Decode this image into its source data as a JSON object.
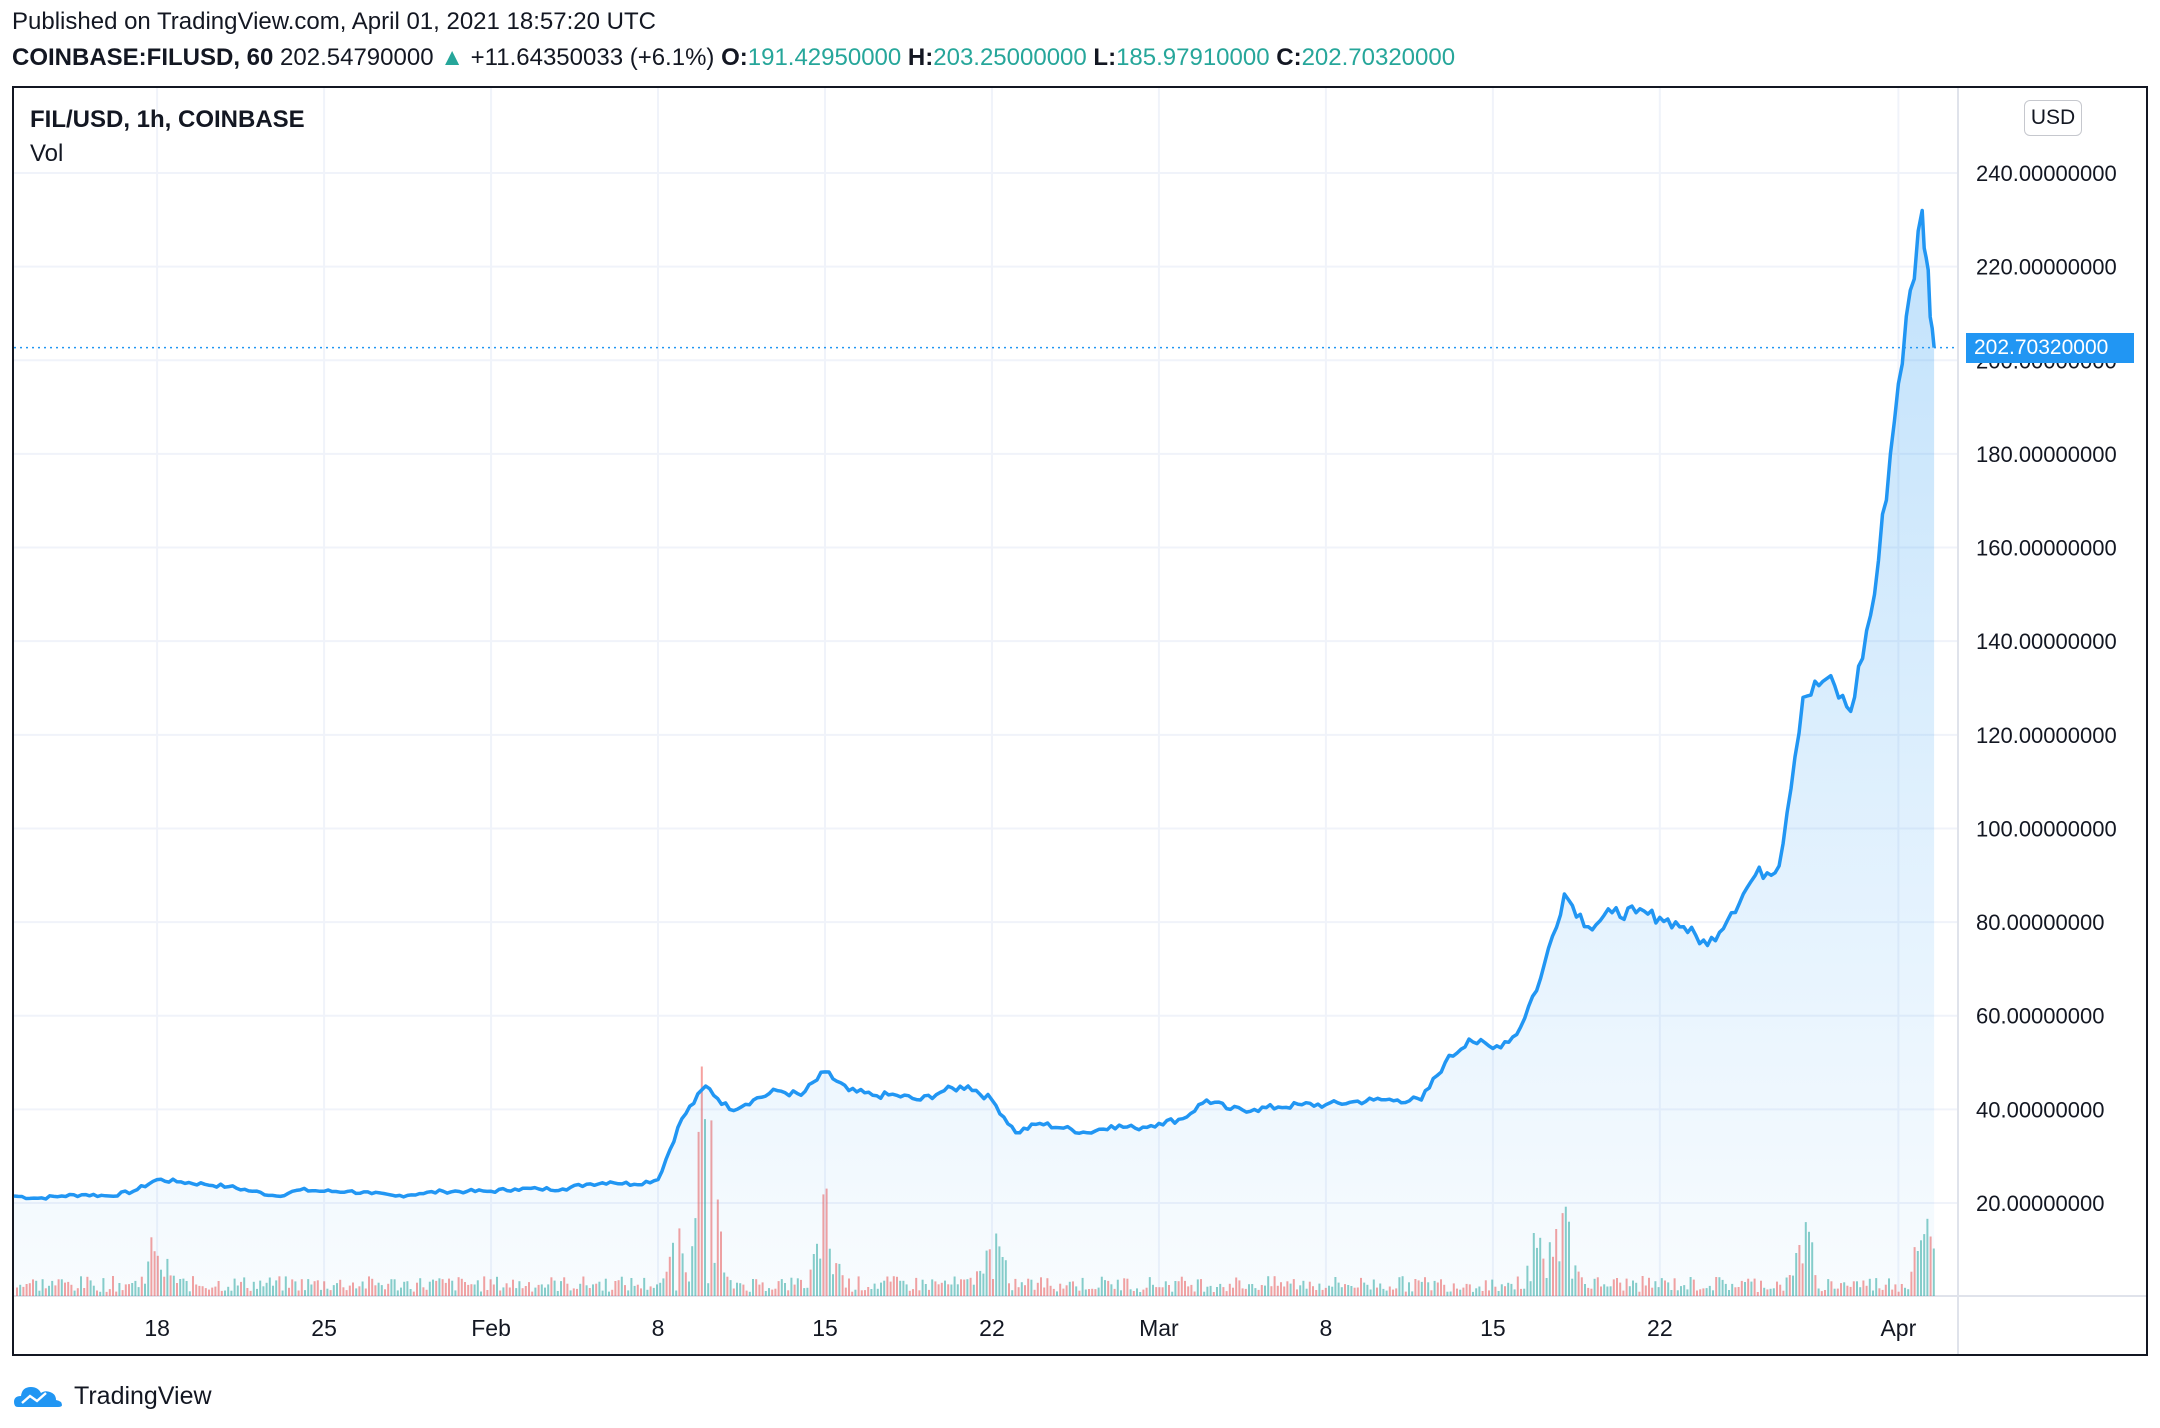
{
  "header": {
    "published": "Published on TradingView.com, April 01, 2021 18:57:20 UTC",
    "symbol": "COINBASE:FILUSD, 60",
    "price": "202.54790000",
    "change": "+11.64350033 (+6.1%)",
    "open_label": "O:",
    "open": "191.42950000",
    "high_label": "H:",
    "high": "203.25000000",
    "low_label": "L:",
    "low": "185.97910000",
    "close_label": "C:",
    "close": "202.70320000"
  },
  "legend": {
    "main": "FIL/USD, 1h, COINBASE",
    "volume": "Vol"
  },
  "currency_button": "USD",
  "last_price_label": "202.70320000",
  "footer": {
    "brand": "TradingView"
  },
  "colors": {
    "line": "#2196f3",
    "vol_up": "#26a69a",
    "vol_down": "#ef5350",
    "grid": "#f0f3fa",
    "text": "#131722"
  },
  "chart_data": {
    "type": "area",
    "title": "FIL/USD, 1h, COINBASE",
    "xlabel": "",
    "ylabel": "",
    "x_unit": "date",
    "ylim": [
      0,
      250
    ],
    "y_ticks": [
      20,
      40,
      60,
      80,
      100,
      120,
      140,
      160,
      180,
      200,
      220,
      240
    ],
    "y_tick_labels": [
      "20.00000000",
      "40.00000000",
      "60.00000000",
      "80.00000000",
      "100.00000000",
      "120.00000000",
      "140.00000000",
      "160.00000000",
      "180.00000000",
      "200.00000000",
      "220.00000000",
      "240.00000000"
    ],
    "x_ticks": [
      "2021-01-18",
      "2021-01-25",
      "2021-02-01",
      "2021-02-08",
      "2021-02-15",
      "2021-02-22",
      "2021-03-01",
      "2021-03-08",
      "2021-03-15",
      "2021-03-22",
      "2021-04-01"
    ],
    "x_tick_labels": [
      "18",
      "25",
      "Feb",
      "8",
      "15",
      "22",
      "Mar",
      "8",
      "15",
      "22",
      "Apr"
    ],
    "grid": true,
    "last_price": 202.7032,
    "series": [
      {
        "points": [
          [
            "2021-01-12",
            21.5
          ],
          [
            "2021-01-13",
            21.0
          ],
          [
            "2021-01-14",
            21.5
          ],
          [
            "2021-01-15",
            21.8
          ],
          [
            "2021-01-16",
            21.5
          ],
          [
            "2021-01-17",
            22.5
          ],
          [
            "2021-01-18",
            25.0
          ],
          [
            "2021-01-19",
            24.5
          ],
          [
            "2021-01-20",
            24.0
          ],
          [
            "2021-01-21",
            23.5
          ],
          [
            "2021-01-22",
            22.5
          ],
          [
            "2021-01-23",
            21.5
          ],
          [
            "2021-01-24",
            22.8
          ],
          [
            "2021-01-25",
            22.5
          ],
          [
            "2021-01-26",
            22.5
          ],
          [
            "2021-01-27",
            22.0
          ],
          [
            "2021-01-28",
            21.5
          ],
          [
            "2021-01-29",
            22.0
          ],
          [
            "2021-01-30",
            22.5
          ],
          [
            "2021-01-31",
            22.5
          ],
          [
            "2021-02-01",
            22.5
          ],
          [
            "2021-02-02",
            23.0
          ],
          [
            "2021-02-03",
            23.0
          ],
          [
            "2021-02-04",
            23.0
          ],
          [
            "2021-02-05",
            24.0
          ],
          [
            "2021-02-06",
            24.5
          ],
          [
            "2021-02-07",
            24.0
          ],
          [
            "2021-02-08",
            25.0
          ],
          [
            "2021-02-09",
            38.0
          ],
          [
            "2021-02-10",
            45.0
          ],
          [
            "2021-02-11",
            40.0
          ],
          [
            "2021-02-12",
            42.0
          ],
          [
            "2021-02-13",
            44.0
          ],
          [
            "2021-02-14",
            43.0
          ],
          [
            "2021-02-15",
            48.0
          ],
          [
            "2021-02-16",
            44.0
          ],
          [
            "2021-02-17",
            43.0
          ],
          [
            "2021-02-18",
            43.0
          ],
          [
            "2021-02-19",
            42.0
          ],
          [
            "2021-02-20",
            44.0
          ],
          [
            "2021-02-21",
            45.0
          ],
          [
            "2021-02-22",
            42.0
          ],
          [
            "2021-02-23",
            35.0
          ],
          [
            "2021-02-24",
            37.0
          ],
          [
            "2021-02-25",
            36.0
          ],
          [
            "2021-02-26",
            35.0
          ],
          [
            "2021-02-27",
            36.5
          ],
          [
            "2021-02-28",
            36.0
          ],
          [
            "2021-03-01",
            37.0
          ],
          [
            "2021-03-02",
            38.0
          ],
          [
            "2021-03-03",
            42.0
          ],
          [
            "2021-03-04",
            40.0
          ],
          [
            "2021-03-05",
            40.0
          ],
          [
            "2021-03-06",
            40.5
          ],
          [
            "2021-03-07",
            41.0
          ],
          [
            "2021-03-08",
            41.0
          ],
          [
            "2021-03-09",
            41.5
          ],
          [
            "2021-03-10",
            42.0
          ],
          [
            "2021-03-11",
            42.0
          ],
          [
            "2021-03-12",
            42.0
          ],
          [
            "2021-03-13",
            50.0
          ],
          [
            "2021-03-14",
            55.0
          ],
          [
            "2021-03-15",
            53.0
          ],
          [
            "2021-03-16",
            56.0
          ],
          [
            "2021-03-17",
            68.0
          ],
          [
            "2021-03-18",
            86.0
          ],
          [
            "2021-03-19",
            79.0
          ],
          [
            "2021-03-20",
            82.0
          ],
          [
            "2021-03-21",
            82.0
          ],
          [
            "2021-03-22",
            81.0
          ],
          [
            "2021-03-23",
            79.0
          ],
          [
            "2021-03-24",
            75.0
          ],
          [
            "2021-03-25",
            82.0
          ],
          [
            "2021-03-26",
            90.0
          ],
          [
            "2021-03-27",
            92.0
          ],
          [
            "2021-03-28",
            128.0
          ],
          [
            "2021-03-29",
            132.0
          ],
          [
            "2021-03-30",
            125.0
          ],
          [
            "2021-03-31",
            150.0
          ],
          [
            "2021-04-01",
            195.0
          ],
          [
            "2021-04-02",
            232.0
          ],
          [
            "2021-04-02T12:00",
            202.7
          ]
        ]
      }
    ]
  }
}
